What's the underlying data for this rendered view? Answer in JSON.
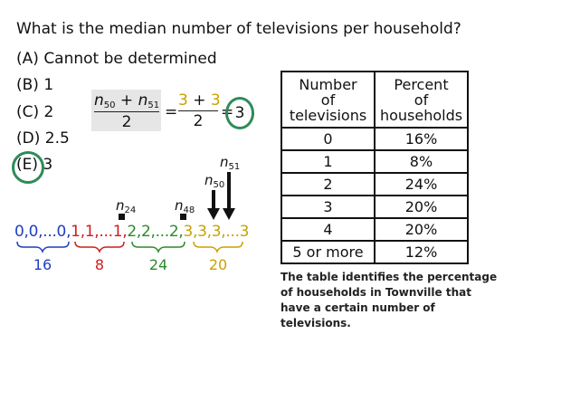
{
  "question": "What is the median number of televisions per household?",
  "choices": [
    {
      "letter": "(A)",
      "text": "Cannot be determined"
    },
    {
      "letter": "(B)",
      "text": "1"
    },
    {
      "letter": "(C)",
      "text": "2"
    },
    {
      "letter": "(D)",
      "text": "2.5"
    },
    {
      "letter": "(E)",
      "text": "3"
    }
  ],
  "formula": {
    "n50": "n",
    "n50_sub": "50",
    "plus": "+",
    "n51": "n",
    "n51_sub": "51",
    "den1": "2",
    "eq1": "=",
    "num2": "3 + 3",
    "den2": "2",
    "eq2": "=",
    "result": "3"
  },
  "table": {
    "header_left": [
      "Number",
      "of",
      "televisions"
    ],
    "header_right": [
      "Percent",
      "of",
      "households"
    ],
    "rows": [
      {
        "count": "0",
        "percent": "16%"
      },
      {
        "count": "1",
        "percent": "8%"
      },
      {
        "count": "2",
        "percent": "24%"
      },
      {
        "count": "3",
        "percent": "20%"
      },
      {
        "count": "4",
        "percent": "20%"
      },
      {
        "count": "5 or more",
        "percent": "12%"
      }
    ]
  },
  "caption": "The table identifies the percentage of households in Townville that have a certain number of televisions.",
  "sequence": {
    "zeros": "0,0,...0,",
    "ones": "1,1,...1,",
    "twos": "2,2,...2,",
    "threes": "3,3,3,...3",
    "zeros_count": "16",
    "ones_count": "8",
    "twos_count": "24",
    "threes_count": "20"
  },
  "markers": {
    "n24": "n",
    "n24_sub": "24",
    "n48": "n",
    "n48_sub": "48",
    "n50": "n",
    "n50_sub": "50",
    "n51": "n",
    "n51_sub": "51"
  },
  "colors": {
    "blue": "#1f3fbf",
    "red": "#d01c1c",
    "green": "#2a8a2a",
    "gold": "#c9a100",
    "circle": "#2e8b57"
  }
}
